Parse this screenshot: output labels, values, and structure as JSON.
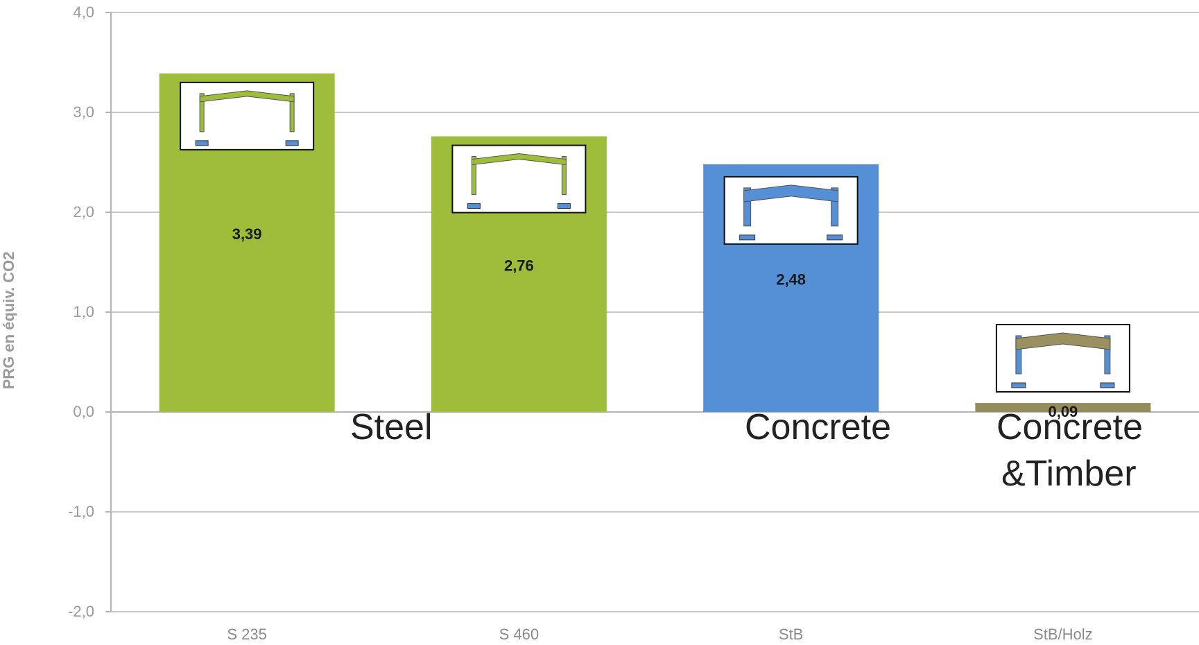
{
  "chart_data": {
    "type": "bar",
    "ylabel": "PRG en équiv. CO2",
    "ylim": [
      -2.0,
      4.0
    ],
    "yticks": [
      4.0,
      3.0,
      2.0,
      1.0,
      0.0,
      -1.0,
      -2.0
    ],
    "ytick_labels": [
      "4,0",
      "3,0",
      "2,0",
      "1,0",
      "0,0",
      "-1,0",
      "-2,0"
    ],
    "grid": true,
    "categories": [
      "S 235",
      "S 460",
      "StB",
      "StB/Holz"
    ],
    "values": [
      3.39,
      2.76,
      2.48,
      0.09
    ],
    "value_labels": [
      "3,39",
      "2,76",
      "2,48",
      "0,09"
    ],
    "bar_colors": [
      "#9dbd3b",
      "#9dbd3b",
      "#5590d6",
      "#948c5a"
    ],
    "frame_icons": [
      "steel-frame-icon",
      "steel-frame-icon",
      "concrete-frame-icon",
      "concrete-timber-frame-icon"
    ],
    "frame_colors": {
      "steel_frame": "#9dbd3b",
      "concrete_frame": "#5590d6",
      "timber_beam": "#9a9060",
      "base_plate": "#5590d6"
    },
    "annotations": {
      "steel": "Steel",
      "concrete": "Concrete",
      "concrete_timber_line1": "Concrete",
      "concrete_timber_line2": "&Timber"
    }
  }
}
